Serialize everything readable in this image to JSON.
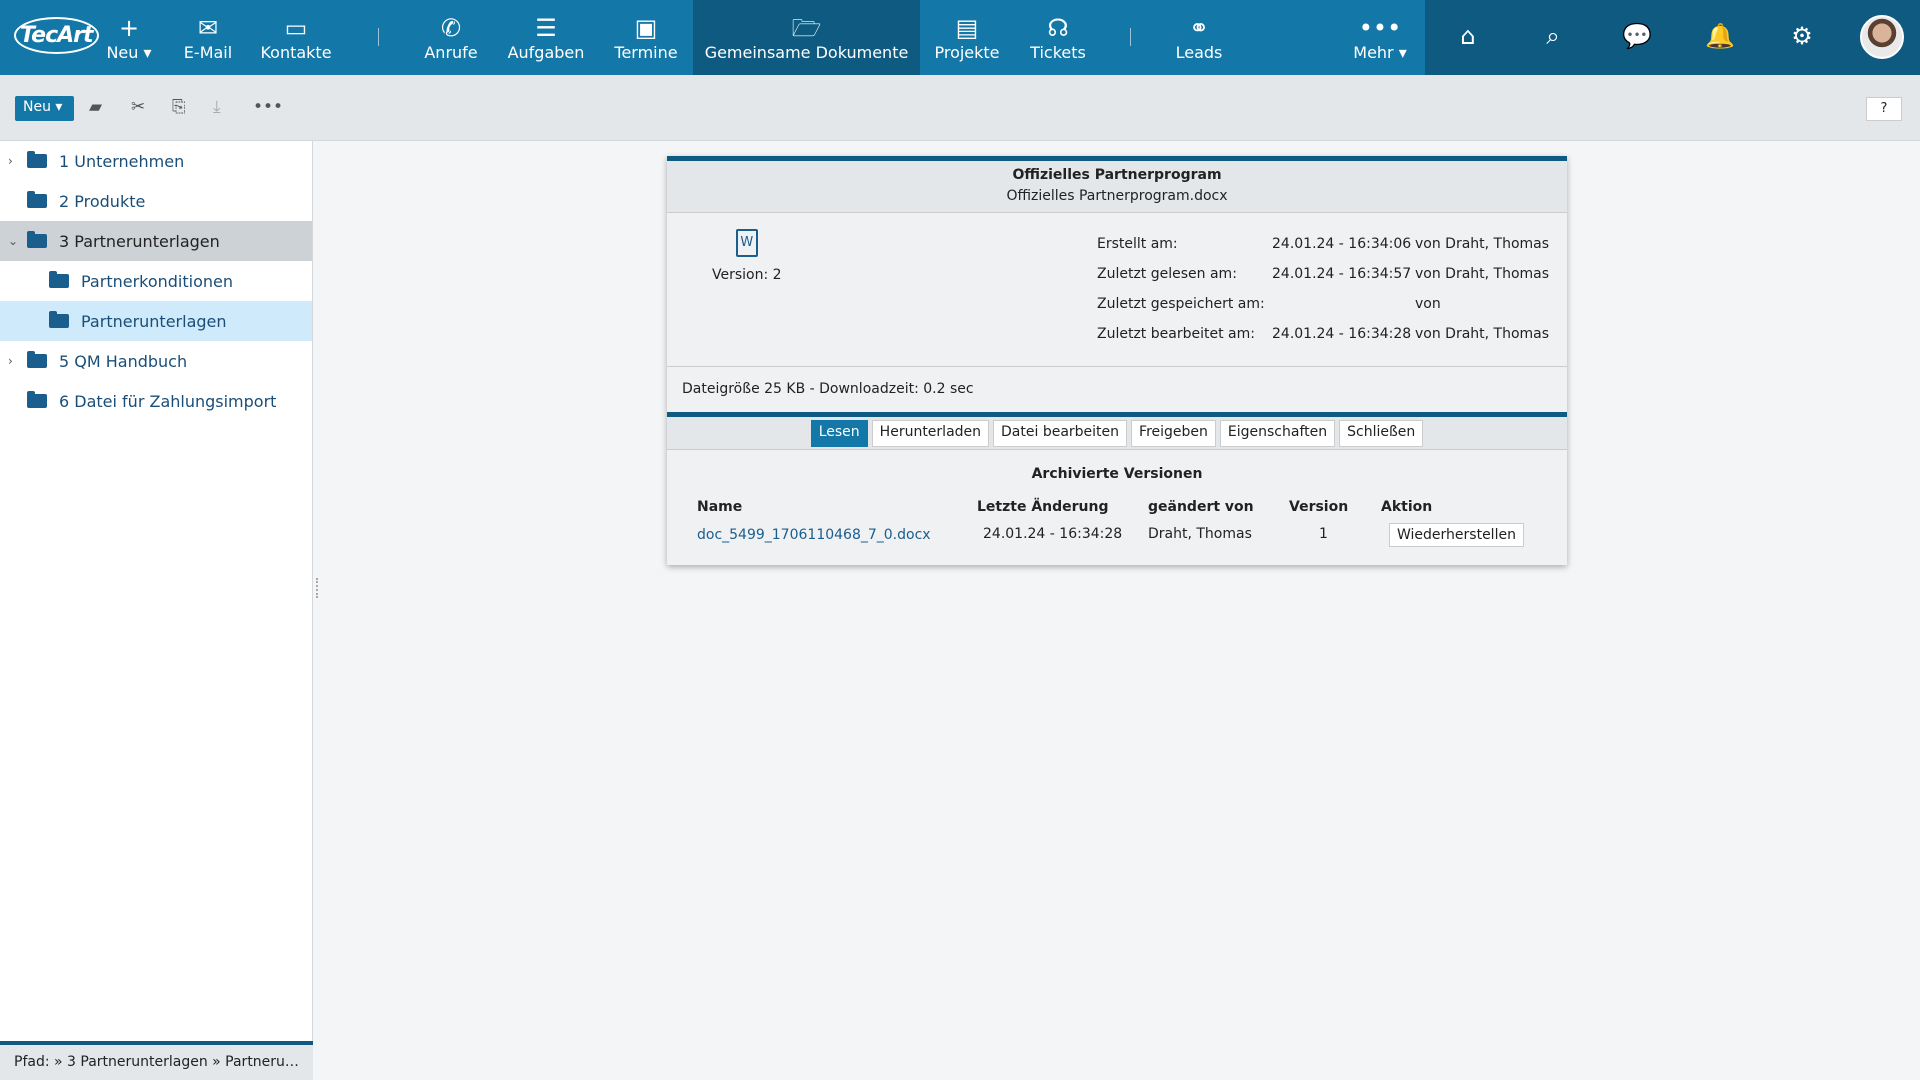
{
  "nav": {
    "logo": "TecArt",
    "items": [
      {
        "label": "Neu ▾",
        "icon": "plus-icon"
      },
      {
        "label": "E-Mail",
        "icon": "mail-icon"
      },
      {
        "label": "Kontakte",
        "icon": "contact-card-icon"
      },
      {
        "label": "Anrufe",
        "icon": "phone-icon"
      },
      {
        "label": "Aufgaben",
        "icon": "checklist-icon"
      },
      {
        "label": "Termine",
        "icon": "calendar-icon"
      },
      {
        "label": "Gemeinsame Dokumente",
        "icon": "folder-open-icon"
      },
      {
        "label": "Projekte",
        "icon": "project-icon"
      },
      {
        "label": "Tickets",
        "icon": "support-icon"
      },
      {
        "label": "Leads",
        "icon": "handshake-icon"
      },
      {
        "label": "Mehr ▾",
        "icon": "more-icon"
      }
    ],
    "right_icons": [
      "home-icon",
      "search-icon",
      "chat-icon",
      "bell-icon",
      "gear-icon",
      "avatar"
    ]
  },
  "toolbar": {
    "new_label": "Neu ▾",
    "help": "?"
  },
  "tree": [
    {
      "label": "1 Unternehmen",
      "expandable": true
    },
    {
      "label": "2 Produkte"
    },
    {
      "label": "3 Partnerunterlagen",
      "expanded": true
    },
    {
      "label": "Partnerkonditionen"
    },
    {
      "label": "Partnerunterlagen"
    },
    {
      "label": "5 QM Handbuch",
      "expandable": true
    },
    {
      "label": "6 Datei für Zahlungsimport"
    }
  ],
  "path": "Pfad: » 3 Partnerunterlagen » Partneru…",
  "dialog": {
    "title": "Offizielles Partnerprogram",
    "filename": "Offizielles Partnerprogram.docx",
    "version": "Version: 2",
    "meta": [
      {
        "label": "Erstellt am:",
        "date": "24.01.24 - 16:34:06",
        "by": "von Draht, Thomas"
      },
      {
        "label": "Zuletzt gelesen am:",
        "date": "24.01.24 - 16:34:57",
        "by": "von Draht, Thomas"
      },
      {
        "label": "Zuletzt gespeichert am:",
        "date": "",
        "by": "von"
      },
      {
        "label": "Zuletzt bearbeitet am:",
        "date": "24.01.24 - 16:34:28",
        "by": "von Draht, Thomas"
      }
    ],
    "size": "Dateigröße 25 KB - Downloadzeit: 0.2 sec",
    "buttons": [
      "Lesen",
      "Herunterladen",
      "Datei bearbeiten",
      "Freigeben",
      "Eigenschaften",
      "Schließen"
    ],
    "archive_title": "Archivierte Versionen",
    "columns": [
      "Name",
      "Letzte Änderung",
      "geändert von",
      "Version",
      "Aktion"
    ],
    "rows": [
      {
        "name": "doc_5499_1706110468_7_0.docx",
        "date": "24.01.24 - 16:34:28",
        "by": "Draht, Thomas",
        "version": "1",
        "action": "Wiederherstellen"
      }
    ]
  }
}
